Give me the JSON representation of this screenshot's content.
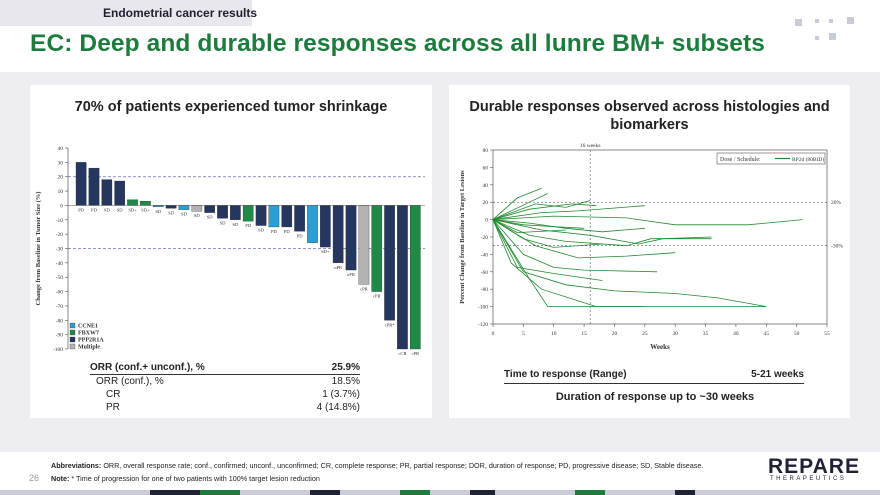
{
  "header": {
    "section_label": "Endometrial cancer results",
    "title": "EC: Deep and durable responses across all lunre BM+ subsets"
  },
  "left_panel": {
    "title": "70% of patients experienced tumor shrinkage",
    "table": {
      "rows": [
        {
          "label": "ORR (conf.+ unconf.), %",
          "value": "25.9%"
        },
        {
          "label": "ORR (conf.), %",
          "value": "18.5%"
        },
        {
          "label": "CR",
          "value": "1 (3.7%)"
        },
        {
          "label": "PR",
          "value": "4 (14.8%)"
        }
      ]
    }
  },
  "right_panel": {
    "title": "Durable responses observed across histologies and biomarkers",
    "time_to_response_label": "Time to response (Range)",
    "time_to_response_value": "5-21 weeks",
    "duration_note": "Duration of response up to ~30 weeks"
  },
  "footer": {
    "page_number": "26",
    "abbreviations_label": "Abbreviations:",
    "abbreviations": "ORR, overall response rate; conf., confirmed; unconf., unconfirmed; CR, complete response; PR, partial response; DOR, duration of response; PD, progressive disease; SD, Stable disease.",
    "note_label": "Note:",
    "note": "* Time of progression for one of two patients with 100% target lesion reduction"
  },
  "logo": {
    "main": "REPARE",
    "sub": "THERAPEUTICS"
  },
  "colors": {
    "title_green": "#1c7b3d",
    "ccne1": "#2a9fd6",
    "fbxw7": "#1f8a45",
    "ppp2r1a": "#25365f",
    "multiple": "#b3b3b3",
    "line_green": "#1f8a2e"
  },
  "chart_data": [
    {
      "type": "bar",
      "title": "",
      "ylabel": "Change from Baseline in Tumor Size (%)",
      "ylim": [
        -100,
        40
      ],
      "yticks": [
        40,
        30,
        20,
        10,
        0,
        -10,
        -20,
        -30,
        -40,
        -50,
        -60,
        -70,
        -80,
        -90,
        -100
      ],
      "reference_lines": [
        20,
        -30
      ],
      "legend": {
        "placement": "bottom-left",
        "entries": [
          {
            "name": "CCNE1",
            "color": "#2a9fd6"
          },
          {
            "name": "FBXW7",
            "color": "#1f8a45"
          },
          {
            "name": "PPP2R1A",
            "color": "#25365f"
          },
          {
            "name": "Multiple",
            "color": "#b3b3b3"
          }
        ]
      },
      "bars": [
        {
          "value": 30,
          "group": "PPP2R1A",
          "label": "PD"
        },
        {
          "value": 26,
          "group": "PPP2R1A",
          "label": "PD"
        },
        {
          "value": 18,
          "group": "PPP2R1A",
          "label": "SD"
        },
        {
          "value": 17,
          "group": "PPP2R1A",
          "label": "SD"
        },
        {
          "value": 4,
          "group": "FBXW7",
          "label": "SD+"
        },
        {
          "value": 3,
          "group": "FBXW7",
          "label": "SD+"
        },
        {
          "value": -1,
          "group": "CCNE1",
          "label": "SD"
        },
        {
          "value": -2,
          "group": "PPP2R1A",
          "label": "SD"
        },
        {
          "value": -3,
          "group": "CCNE1",
          "label": "SD"
        },
        {
          "value": -4,
          "group": "Multiple",
          "label": "SD"
        },
        {
          "value": -5,
          "group": "PPP2R1A",
          "label": "SD"
        },
        {
          "value": -9,
          "group": "PPP2R1A",
          "label": "SD"
        },
        {
          "value": -10,
          "group": "PPP2R1A",
          "label": "SD"
        },
        {
          "value": -11,
          "group": "FBXW7",
          "label": "PD"
        },
        {
          "value": -14,
          "group": "PPP2R1A",
          "label": "SD"
        },
        {
          "value": -15,
          "group": "CCNE1",
          "label": "PD"
        },
        {
          "value": -15,
          "group": "PPP2R1A",
          "label": "PD"
        },
        {
          "value": -18,
          "group": "PPP2R1A",
          "label": "PD"
        },
        {
          "value": -26,
          "group": "CCNE1",
          "label": ""
        },
        {
          "value": -29,
          "group": "PPP2R1A",
          "label": "SD+"
        },
        {
          "value": -40,
          "group": "PPP2R1A",
          "label": "uPR"
        },
        {
          "value": -45,
          "group": "PPP2R1A",
          "label": "uPR"
        },
        {
          "value": -55,
          "group": "Multiple",
          "label": "cPR"
        },
        {
          "value": -60,
          "group": "FBXW7",
          "label": "cPR"
        },
        {
          "value": -80,
          "group": "PPP2R1A",
          "label": "cPR*"
        },
        {
          "value": -100,
          "group": "PPP2R1A",
          "label": "cCR"
        },
        {
          "value": -100,
          "group": "FBXW7",
          "label": "cPR"
        }
      ]
    },
    {
      "type": "line",
      "title": "",
      "xlabel": "Weeks",
      "ylabel": "Percent Change from Baseline in Target Lesions",
      "xlim": [
        0,
        55
      ],
      "ylim": [
        -120,
        80
      ],
      "xticks": [
        0,
        5,
        10,
        15,
        20,
        25,
        30,
        35,
        40,
        45,
        50,
        55
      ],
      "yticks": [
        80,
        60,
        40,
        20,
        0,
        -20,
        -40,
        -60,
        -80,
        -100,
        -120
      ],
      "reference_lines_y": [
        {
          "value": 20,
          "label": "20%"
        },
        {
          "value": -30,
          "label": "-30%"
        }
      ],
      "reference_line_x": {
        "value": 16,
        "label": "16 weeks"
      },
      "legend": {
        "title": "Dose / Schedule:",
        "entries": [
          {
            "name": "RP2d (80BID)"
          }
        ],
        "placement": "top-right"
      },
      "series": [
        {
          "x": [
            0,
            4,
            8
          ],
          "y": [
            0,
            25,
            36
          ]
        },
        {
          "x": [
            0,
            6,
            9
          ],
          "y": [
            0,
            20,
            30
          ]
        },
        {
          "x": [
            0,
            7,
            12,
            16
          ],
          "y": [
            0,
            18,
            14,
            22
          ]
        },
        {
          "x": [
            0,
            6,
            13,
            17
          ],
          "y": [
            0,
            12,
            18,
            16
          ]
        },
        {
          "x": [
            0,
            8,
            14,
            25
          ],
          "y": [
            0,
            8,
            10,
            16
          ]
        },
        {
          "x": [
            0,
            10,
            22,
            30,
            42,
            51
          ],
          "y": [
            0,
            4,
            2,
            -6,
            -6,
            0
          ]
        },
        {
          "x": [
            0,
            6,
            12,
            18,
            25
          ],
          "y": [
            0,
            -4,
            -10,
            -14,
            -10
          ]
        },
        {
          "x": [
            0,
            5,
            10,
            15
          ],
          "y": [
            0,
            -6,
            -8,
            -10
          ]
        },
        {
          "x": [
            0,
            8,
            16,
            24,
            28,
            36
          ],
          "y": [
            0,
            -12,
            -18,
            -28,
            -22,
            -20
          ]
        },
        {
          "x": [
            0,
            6,
            12,
            22,
            26,
            36
          ],
          "y": [
            0,
            -18,
            -25,
            -30,
            -22,
            -22
          ]
        },
        {
          "x": [
            0,
            4,
            12
          ],
          "y": [
            0,
            -15,
            -12
          ]
        },
        {
          "x": [
            0,
            5,
            10,
            18
          ],
          "y": [
            0,
            -22,
            -32,
            -28
          ]
        },
        {
          "x": [
            0,
            7,
            14,
            22,
            30
          ],
          "y": [
            0,
            -30,
            -44,
            -42,
            -38
          ]
        },
        {
          "x": [
            0,
            5,
            10,
            15,
            27
          ],
          "y": [
            0,
            -40,
            -55,
            -58,
            -60
          ]
        },
        {
          "x": [
            0,
            4,
            10,
            18
          ],
          "y": [
            0,
            -55,
            -62,
            -70
          ]
        },
        {
          "x": [
            0,
            5,
            12,
            20,
            30,
            37,
            45
          ],
          "y": [
            0,
            -60,
            -75,
            -82,
            -85,
            -90,
            -100
          ]
        },
        {
          "x": [
            0,
            6,
            9,
            18,
            25
          ],
          "y": [
            0,
            -68,
            -100,
            -100,
            -100
          ]
        },
        {
          "x": [
            0,
            3,
            8,
            17,
            23,
            31,
            38,
            45
          ],
          "y": [
            0,
            -50,
            -80,
            -100,
            -100,
            -100,
            -100,
            -100
          ]
        }
      ]
    }
  ]
}
